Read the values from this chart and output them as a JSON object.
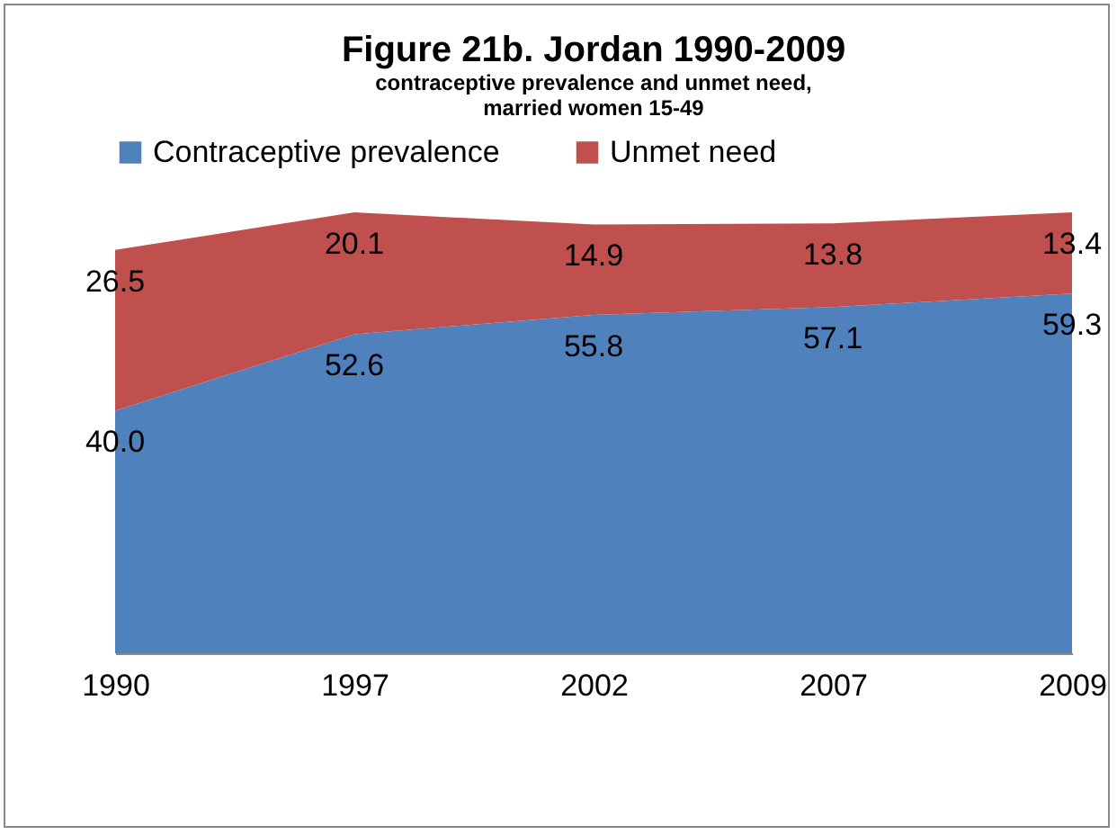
{
  "chart_data": {
    "type": "area",
    "title": "Figure 21b. Jordan 1990-2009",
    "subtitle": "contraceptive prevalence and unmet need,\nmarried women 15-49",
    "categories": [
      "1990",
      "1997",
      "2002",
      "2007",
      "2009"
    ],
    "series": [
      {
        "name": "Contraceptive prevalence",
        "color": "#4f81bd",
        "values": [
          40.0,
          52.6,
          55.8,
          57.1,
          59.3
        ],
        "value_labels": [
          "40.0",
          "52.6",
          "55.8",
          "57.1",
          "59.3"
        ]
      },
      {
        "name": "Unmet need",
        "color": "#c0504d",
        "values": [
          26.5,
          20.1,
          14.9,
          13.8,
          13.4
        ],
        "value_labels": [
          "26.5",
          "20.1",
          "14.9",
          "13.8",
          "13.4"
        ]
      }
    ],
    "stacked": true,
    "legend": "top",
    "grid": false
  }
}
